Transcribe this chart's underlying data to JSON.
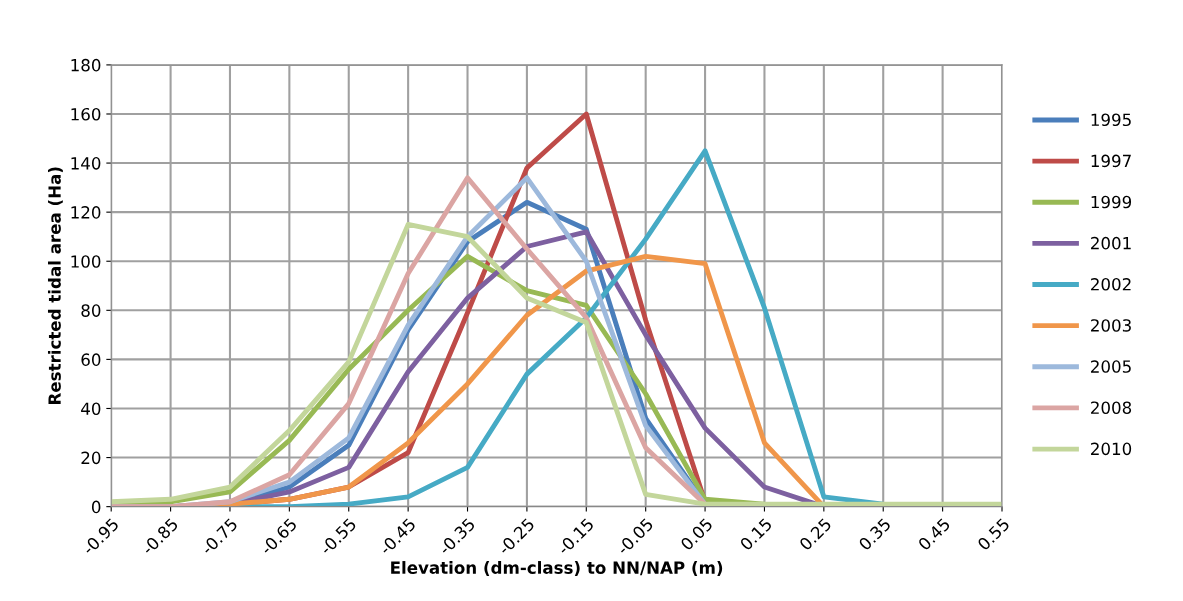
{
  "chart_data": {
    "type": "line",
    "xlabel": "Elevation (dm-class) to NN/NAP (m)",
    "ylabel": "Restricted tidal area (Ha)",
    "x": [
      -0.95,
      -0.85,
      -0.75,
      -0.65,
      -0.55,
      -0.45,
      -0.35,
      -0.25,
      -0.15,
      -0.05,
      0.05,
      0.15,
      0.25,
      0.35,
      0.45,
      0.55
    ],
    "xlim": [
      -0.95,
      0.55
    ],
    "xticks": [
      {
        "value": -0.95,
        "label": "-0.95"
      },
      {
        "value": -0.85,
        "label": "-0.85"
      },
      {
        "value": -0.75,
        "label": "-0.75"
      },
      {
        "value": -0.65,
        "label": "-0.65"
      },
      {
        "value": -0.55,
        "label": "-0.55"
      },
      {
        "value": -0.45,
        "label": "-0.45"
      },
      {
        "value": -0.35,
        "label": "-0.35"
      },
      {
        "value": -0.25,
        "label": "-0.25"
      },
      {
        "value": -0.15,
        "label": "-0.15"
      },
      {
        "value": -0.05,
        "label": "-0.05"
      },
      {
        "value": 0.05,
        "label": "0.05"
      },
      {
        "value": 0.15,
        "label": "0.15"
      },
      {
        "value": 0.25,
        "label": "0.25"
      },
      {
        "value": 0.35,
        "label": "0.35"
      },
      {
        "value": 0.45,
        "label": "0.45"
      },
      {
        "value": 0.55,
        "label": "0.55"
      }
    ],
    "ylim": [
      0,
      180
    ],
    "yticks": [
      0,
      20,
      40,
      60,
      80,
      100,
      120,
      140,
      160,
      180
    ],
    "grid": true,
    "legend": "right",
    "marker": "none",
    "line_style": "solid",
    "series": [
      {
        "name": "1995",
        "color": "#4a7ebb",
        "values": [
          0,
          0,
          1,
          8,
          25,
          72,
          108,
          124,
          113,
          36,
          1,
          0,
          null,
          null,
          null,
          null
        ]
      },
      {
        "name": "1997",
        "color": "#be4b48",
        "values": [
          0,
          0,
          1,
          3,
          8,
          22,
          79,
          138,
          160,
          76,
          2,
          0,
          null,
          null,
          null,
          null
        ]
      },
      {
        "name": "1999",
        "color": "#98b954",
        "values": [
          1,
          2,
          6,
          27,
          56,
          80,
          102,
          88,
          82,
          46,
          3,
          1,
          0,
          0,
          0,
          0
        ]
      },
      {
        "name": "2001",
        "color": "#7d60a0",
        "values": [
          0,
          0,
          1,
          6,
          16,
          55,
          85,
          106,
          112,
          70,
          32,
          8,
          0,
          0,
          0,
          0
        ]
      },
      {
        "name": "2002",
        "color": "#46aac5",
        "values": [
          0,
          0,
          0,
          0,
          1,
          4,
          16,
          54,
          77,
          109,
          145,
          81,
          4,
          1,
          0,
          0
        ]
      },
      {
        "name": "2003",
        "color": "#f0964a",
        "values": [
          0,
          0,
          1,
          3,
          8,
          26,
          50,
          78,
          96,
          102,
          99,
          26,
          0,
          0,
          null,
          null
        ]
      },
      {
        "name": "2005",
        "color": "#9db9dc",
        "values": [
          0,
          0,
          2,
          10,
          28,
          74,
          110,
          134,
          100,
          33,
          1,
          0,
          0,
          0,
          0,
          0
        ]
      },
      {
        "name": "2008",
        "color": "#dba5a3",
        "values": [
          0,
          0,
          2,
          13,
          42,
          95,
          134,
          105,
          77,
          24,
          1,
          0,
          0,
          0,
          0,
          0
        ]
      },
      {
        "name": "2010",
        "color": "#c3d69b",
        "values": [
          2,
          3,
          8,
          31,
          59,
          115,
          110,
          85,
          75,
          5,
          1,
          1,
          1,
          1,
          1,
          1
        ]
      }
    ]
  }
}
